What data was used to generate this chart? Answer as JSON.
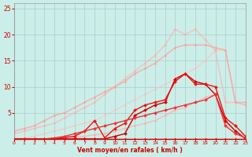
{
  "background_color": "#cceee8",
  "grid_color": "#aacccc",
  "xlabel": "Vent moyen/en rafales ( km/h )",
  "xlabel_color": "#cc0000",
  "tick_color": "#cc0000",
  "xlim": [
    0,
    23
  ],
  "ylim": [
    0,
    26
  ],
  "xticks": [
    0,
    1,
    2,
    3,
    4,
    5,
    6,
    7,
    8,
    9,
    10,
    11,
    12,
    13,
    14,
    15,
    16,
    17,
    18,
    19,
    20,
    21,
    22,
    23
  ],
  "yticks": [
    5,
    10,
    15,
    20,
    25
  ],
  "lines": [
    {
      "x": [
        0,
        1,
        2,
        3,
        4,
        5,
        6,
        7,
        8,
        9,
        10,
        11,
        12,
        13,
        14,
        15,
        16,
        17,
        18,
        19,
        20,
        21,
        22,
        23
      ],
      "y": [
        0,
        0,
        0,
        0,
        0,
        0,
        0,
        0,
        0,
        0,
        0,
        0,
        0,
        0,
        0,
        0,
        0,
        0,
        0,
        0,
        0,
        0,
        0,
        0
      ],
      "color": "#dd2222",
      "alpha": 1.0,
      "lw": 0.8,
      "marker": "D",
      "ms": 1.5
    },
    {
      "x": [
        0,
        1,
        2,
        3,
        4,
        5,
        6,
        7,
        8,
        9,
        10,
        11,
        12,
        13,
        14,
        15,
        16,
        17,
        18,
        19,
        20,
        21,
        22,
        23
      ],
      "y": [
        0,
        0,
        0,
        0,
        0,
        0.2,
        0.3,
        0.5,
        0.8,
        1.0,
        1.5,
        2.0,
        2.5,
        3.0,
        3.5,
        4.5,
        5.5,
        6.0,
        7.0,
        8.0,
        8.5,
        3.0,
        1.5,
        0.5
      ],
      "color": "#ffaaaa",
      "alpha": 0.7,
      "lw": 1.0,
      "marker": "D",
      "ms": 1.5
    },
    {
      "x": [
        0,
        1,
        2,
        3,
        4,
        5,
        6,
        7,
        8,
        9,
        10,
        11,
        12,
        13,
        14,
        15,
        16,
        17,
        18,
        19,
        20,
        21,
        22,
        23
      ],
      "y": [
        0,
        0.2,
        0.5,
        1.0,
        1.5,
        2.0,
        2.5,
        3.0,
        3.5,
        4.5,
        5.5,
        6.5,
        7.5,
        8.5,
        9.5,
        10.5,
        11.5,
        12.5,
        13.5,
        15.0,
        17.0,
        17.0,
        7.0,
        6.5
      ],
      "color": "#ffbbbb",
      "alpha": 0.6,
      "lw": 1.0,
      "marker": "D",
      "ms": 1.5
    },
    {
      "x": [
        0,
        1,
        2,
        3,
        4,
        5,
        6,
        7,
        8,
        9,
        10,
        11,
        12,
        13,
        14,
        15,
        16,
        17,
        18,
        19,
        20,
        21,
        22,
        23
      ],
      "y": [
        1.0,
        1.5,
        2.0,
        2.5,
        3.0,
        4.0,
        5.0,
        6.0,
        7.0,
        8.5,
        10.0,
        11.5,
        13.0,
        14.5,
        16.0,
        18.0,
        21.0,
        20.0,
        21.0,
        19.0,
        17.0,
        7.0,
        7.0,
        6.5
      ],
      "color": "#ffaaaa",
      "alpha": 0.55,
      "lw": 1.2,
      "marker": "D",
      "ms": 1.5
    },
    {
      "x": [
        0,
        1,
        2,
        3,
        4,
        5,
        6,
        7,
        8,
        9,
        10,
        11,
        12,
        13,
        14,
        15,
        16,
        17,
        18,
        19,
        20,
        21,
        22,
        23
      ],
      "y": [
        1.5,
        2.0,
        2.5,
        3.5,
        4.5,
        5.0,
        6.0,
        7.0,
        8.0,
        9.0,
        10.0,
        11.0,
        12.5,
        13.5,
        14.5,
        16.0,
        17.5,
        18.0,
        18.0,
        18.0,
        17.5,
        17.0,
        7.0,
        7.0
      ],
      "color": "#ff9999",
      "alpha": 0.65,
      "lw": 1.2,
      "marker": "D",
      "ms": 1.5
    },
    {
      "x": [
        0,
        1,
        2,
        3,
        4,
        5,
        6,
        7,
        8,
        9,
        10,
        11,
        12,
        13,
        14,
        15,
        16,
        17,
        18,
        19,
        20,
        21,
        22,
        23
      ],
      "y": [
        0,
        0,
        0,
        0,
        0,
        0,
        0,
        0,
        0,
        0,
        0.5,
        1.0,
        4.5,
        5.5,
        6.5,
        7.0,
        11.5,
        12.5,
        11.0,
        10.5,
        8.5,
        3.5,
        1.5,
        0
      ],
      "color": "#cc0000",
      "alpha": 1.0,
      "lw": 1.0,
      "marker": "D",
      "ms": 2.0
    },
    {
      "x": [
        0,
        1,
        2,
        3,
        4,
        5,
        6,
        7,
        8,
        9,
        10,
        11,
        12,
        13,
        14,
        15,
        16,
        17,
        18,
        19,
        20,
        21,
        22,
        23
      ],
      "y": [
        0,
        0,
        0,
        0,
        0,
        0.3,
        0.5,
        1.5,
        3.5,
        0.2,
        2.0,
        3.0,
        5.5,
        6.5,
        7.0,
        7.5,
        11.0,
        12.5,
        10.5,
        10.5,
        10.0,
        4.0,
        2.5,
        0.5
      ],
      "color": "#ee1111",
      "alpha": 1.0,
      "lw": 1.0,
      "marker": "D",
      "ms": 2.0
    },
    {
      "x": [
        0,
        1,
        2,
        3,
        4,
        5,
        6,
        7,
        8,
        9,
        10,
        11,
        12,
        13,
        14,
        15,
        16,
        17,
        18,
        19,
        20,
        21,
        22,
        23
      ],
      "y": [
        0,
        0,
        0,
        0,
        0.2,
        0.5,
        1.0,
        1.5,
        2.0,
        2.5,
        3.0,
        3.5,
        4.0,
        4.5,
        5.0,
        5.5,
        6.0,
        6.5,
        7.0,
        7.5,
        8.5,
        2.5,
        1.0,
        0.2
      ],
      "color": "#ee3333",
      "alpha": 1.0,
      "lw": 1.0,
      "marker": "D",
      "ms": 2.0
    }
  ]
}
